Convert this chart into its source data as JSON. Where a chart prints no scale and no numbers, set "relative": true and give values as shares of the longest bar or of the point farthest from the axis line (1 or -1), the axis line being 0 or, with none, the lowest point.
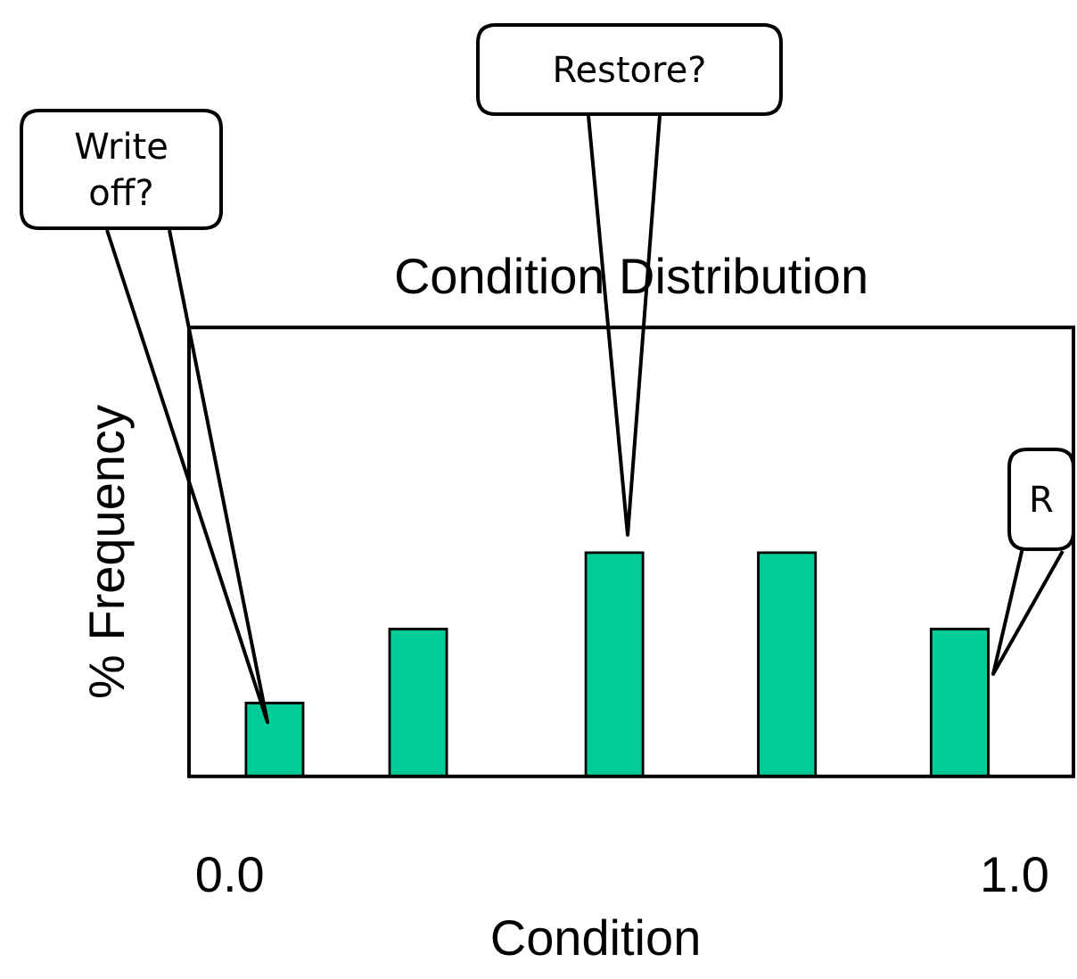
{
  "chart_data": {
    "type": "bar",
    "title": "Condition Distribution",
    "xlabel": "Condition",
    "ylabel": "% Frequency",
    "relative": true,
    "x": [
      0.057,
      0.24,
      0.49,
      0.71,
      0.93
    ],
    "values": [
      0.33,
      0.66,
      1,
      1,
      0.66
    ],
    "color": "#00cc99",
    "xlim": [
      -0.052,
      1.075
    ],
    "xticks": [
      {
        "value": 0,
        "label": "0.0"
      },
      {
        "value": 1,
        "label": "1.0"
      }
    ],
    "grid": false,
    "annotations": [
      "Write off?",
      "Restore?",
      "R"
    ]
  }
}
